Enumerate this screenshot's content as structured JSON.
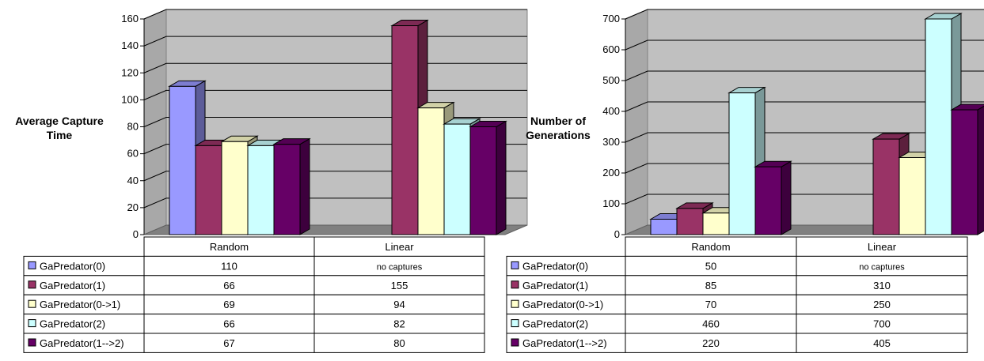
{
  "chart_data": [
    {
      "type": "bar",
      "title": "",
      "xlabel": "",
      "ylabel": "Average Capture Time",
      "ylim": [
        0,
        160
      ],
      "yticks": [
        0,
        20,
        40,
        60,
        80,
        100,
        120,
        140,
        160
      ],
      "grid": true,
      "legend": "table-below",
      "categories": [
        "Random",
        "Linear"
      ],
      "series": [
        {
          "name": "GaPredator(0)",
          "color": "#9999ff",
          "values": [
            110,
            null
          ],
          "labels": [
            "110",
            "no captures"
          ]
        },
        {
          "name": "GaPredator(1)",
          "color": "#993366",
          "values": [
            66,
            155
          ],
          "labels": [
            "66",
            "155"
          ]
        },
        {
          "name": "GaPredator(0->1)",
          "color": "#ffffcc",
          "values": [
            69,
            94
          ],
          "labels": [
            "69",
            "94"
          ]
        },
        {
          "name": "GaPredator(2)",
          "color": "#ccffff",
          "values": [
            66,
            82
          ],
          "labels": [
            "66",
            "82"
          ]
        },
        {
          "name": "GaPredator(1-->2)",
          "color": "#660066",
          "values": [
            67,
            80
          ],
          "labels": [
            "67",
            "80"
          ]
        }
      ]
    },
    {
      "type": "bar",
      "title": "",
      "xlabel": "",
      "ylabel": "Number of Generations",
      "ylim": [
        0,
        700
      ],
      "yticks": [
        0,
        100,
        200,
        300,
        400,
        500,
        600,
        700
      ],
      "grid": true,
      "legend": "table-below",
      "categories": [
        "Random",
        "Linear"
      ],
      "series": [
        {
          "name": "GaPredator(0)",
          "color": "#9999ff",
          "values": [
            50,
            null
          ],
          "labels": [
            "50",
            "no captures"
          ]
        },
        {
          "name": "GaPredator(1)",
          "color": "#993366",
          "values": [
            85,
            310
          ],
          "labels": [
            "85",
            "310"
          ]
        },
        {
          "name": "GaPredator(0->1)",
          "color": "#ffffcc",
          "values": [
            70,
            250
          ],
          "labels": [
            "70",
            "250"
          ]
        },
        {
          "name": "GaPredator(2)",
          "color": "#ccffff",
          "values": [
            460,
            700
          ],
          "labels": [
            "460",
            "700"
          ]
        },
        {
          "name": "GaPredator(1-->2)",
          "color": "#660066",
          "values": [
            220,
            405
          ],
          "labels": [
            "220",
            "405"
          ]
        }
      ]
    }
  ]
}
